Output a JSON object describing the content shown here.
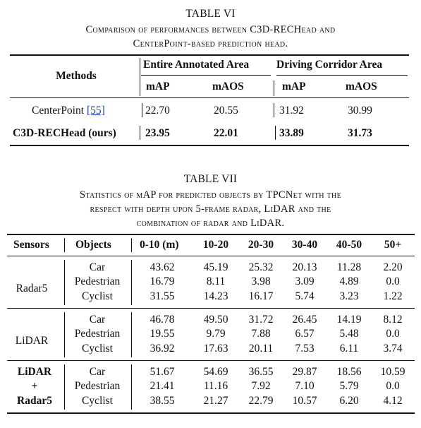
{
  "table6": {
    "title": "TABLE VI",
    "caption_lines": [
      "Comparison of performances between C3D-RECHead and",
      "CenterPoint-based prediction head."
    ],
    "header": {
      "methods": "Methods",
      "group1": "Entire Annotated Area",
      "group2": "Driving Corridor Area",
      "sub": [
        "mAP",
        "mAOS",
        "mAP",
        "mAOS"
      ]
    },
    "rows": [
      {
        "method": "CenterPoint",
        "ref": "[55]",
        "values": [
          "22.70",
          "20.55",
          "31.92",
          "30.99"
        ]
      },
      {
        "method": "C3D-RECHead (ours)",
        "ref": "",
        "values": [
          "23.95",
          "22.01",
          "33.89",
          "31.73"
        ]
      }
    ]
  },
  "table7": {
    "title": "TABLE VII",
    "caption_lines": [
      "Statistics of mAP for predicted objects by TPCNet with the",
      "respect with depth upon 5-frame radar, LiDAR and the",
      "combination of radar and LiDAR."
    ],
    "columns": [
      "Sensors",
      "Objects",
      "0-10 (m)",
      "10-20",
      "20-30",
      "30-40",
      "40-50",
      "50+"
    ],
    "groups": [
      {
        "sensor": [
          "Radar5"
        ],
        "rows": [
          {
            "object": "Car",
            "values": [
              "43.62",
              "45.19",
              "25.32",
              "20.13",
              "11.28",
              "2.20"
            ]
          },
          {
            "object": "Pedestrian",
            "values": [
              "16.79",
              "8.11",
              "3.98",
              "3.09",
              "4.89",
              "0.0"
            ]
          },
          {
            "object": "Cyclist",
            "values": [
              "31.55",
              "14.23",
              "16.17",
              "5.74",
              "3.23",
              "1.22"
            ]
          }
        ]
      },
      {
        "sensor": [
          "LiDAR"
        ],
        "rows": [
          {
            "object": "Car",
            "values": [
              "46.78",
              "49.50",
              "31.72",
              "26.45",
              "14.19",
              "8.12"
            ]
          },
          {
            "object": "Pedestrian",
            "values": [
              "19.55",
              "9.79",
              "7.88",
              "6.57",
              "5.48",
              "0.0"
            ]
          },
          {
            "object": "Cyclist",
            "values": [
              "36.92",
              "17.63",
              "20.11",
              "7.53",
              "6.11",
              "3.74"
            ]
          }
        ]
      },
      {
        "sensor": [
          "LiDAR",
          "+",
          "Radar5"
        ],
        "rows": [
          {
            "object": "Car",
            "values": [
              "51.67",
              "54.69",
              "36.55",
              "29.87",
              "18.56",
              "10.59"
            ]
          },
          {
            "object": "Pedestrian",
            "values": [
              "21.41",
              "11.16",
              "7.92",
              "7.10",
              "5.79",
              "0.0"
            ]
          },
          {
            "object": "Cyclist",
            "values": [
              "38.55",
              "21.27",
              "22.79",
              "10.57",
              "6.20",
              "4.12"
            ]
          }
        ]
      }
    ]
  }
}
